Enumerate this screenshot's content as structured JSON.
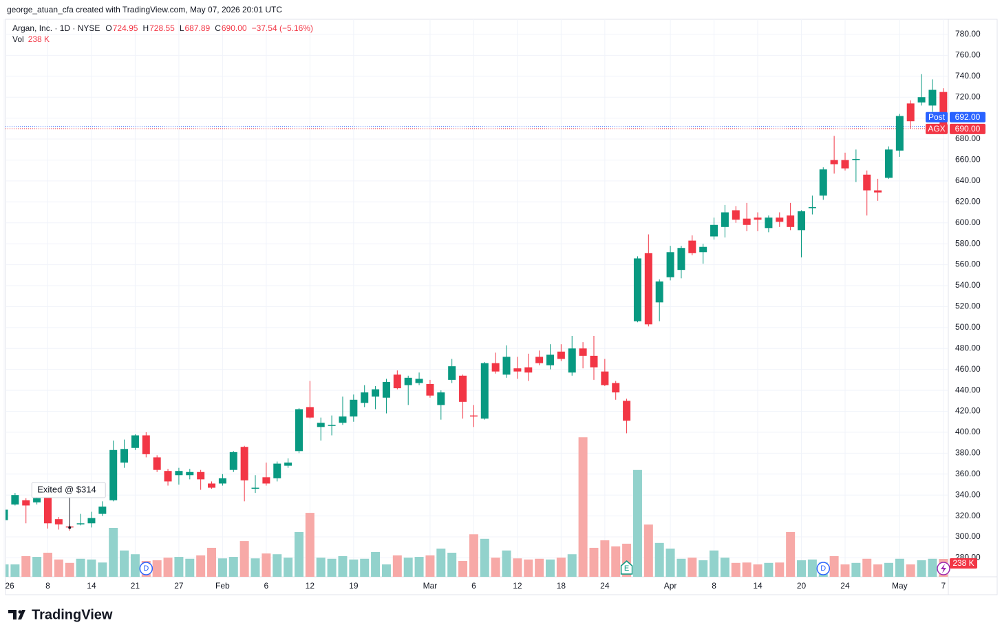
{
  "chart_data": {
    "type": "candlestick",
    "header": "george_atuan_cfa created with TradingView.com, May 07, 2026 20:01 UTC",
    "title": "Argan, Inc. · 1D · NYSE",
    "ohlc_legend": [
      {
        "key": "O",
        "value": "724.95"
      },
      {
        "key": "H",
        "value": "728.55"
      },
      {
        "key": "L",
        "value": "687.89"
      },
      {
        "key": "C",
        "value": "690.00"
      }
    ],
    "change": "−37.54 (−5.16%)",
    "volume_legend": {
      "name": "Vol",
      "value": "238 K"
    },
    "brand": "TradingView",
    "up_color": "#089981",
    "down_color": "#f23645",
    "up_volume_color": "#92d2cc",
    "down_volume_color": "#f7a9a7",
    "categories": [
      "26",
      null,
      null,
      null,
      "8",
      null,
      null,
      null,
      "14",
      null,
      null,
      null,
      "21",
      null,
      null,
      null,
      "27",
      null,
      null,
      null,
      "Feb",
      null,
      null,
      null,
      "6",
      null,
      null,
      null,
      "12",
      null,
      null,
      null,
      "19",
      null,
      null,
      null,
      null,
      null,
      null,
      "Mar",
      null,
      null,
      null,
      "6",
      null,
      null,
      null,
      "12",
      null,
      null,
      null,
      "18",
      null,
      null,
      null,
      "24",
      null,
      null,
      null,
      null,
      null,
      "Apr",
      null,
      null,
      null,
      "8",
      null,
      null,
      null,
      "14",
      null,
      null,
      null,
      "20",
      null,
      null,
      null,
      "24",
      null,
      null,
      null,
      null,
      "May",
      null,
      null,
      null,
      "7"
    ],
    "open": [
      316,
      331,
      335,
      333,
      338,
      317,
      310,
      312,
      313,
      322,
      335,
      371,
      385,
      397,
      376,
      363,
      359,
      359,
      362,
      351,
      351,
      364,
      386,
      346,
      357,
      356,
      368,
      382,
      424,
      405,
      406,
      409,
      415,
      428,
      434,
      433,
      455,
      445,
      447,
      446,
      426,
      450,
      454,
      416,
      413,
      466,
      455,
      461,
      462,
      472,
      464,
      477,
      457,
      480,
      473,
      458,
      447,
      430,
      506,
      571,
      524,
      548,
      555,
      583,
      572,
      587,
      596,
      612,
      604,
      605,
      595,
      605,
      607,
      593,
      614,
      626,
      660,
      660,
      660,
      646,
      631,
      643,
      669,
      714,
      715,
      712,
      724.95
    ],
    "high": [
      328,
      342,
      337,
      340,
      340,
      319,
      312,
      322,
      324,
      334,
      392,
      393,
      398,
      400,
      378,
      365,
      366,
      365,
      364,
      353,
      360,
      382,
      387,
      359,
      371,
      372,
      375,
      423,
      449,
      414,
      416,
      434,
      436,
      445,
      444,
      451,
      459,
      454,
      457,
      450,
      440,
      470,
      455,
      426,
      467,
      476,
      483,
      472,
      475,
      478,
      484,
      484,
      492,
      486,
      492,
      470,
      449,
      432,
      568,
      589,
      546,
      578,
      578,
      588,
      580,
      605,
      617,
      616,
      619,
      610,
      607,
      610,
      619,
      612,
      626,
      653,
      683,
      667,
      670,
      650,
      642,
      673,
      704,
      717,
      742,
      737,
      728.55
    ],
    "low": [
      314,
      330,
      313,
      331,
      308,
      307,
      306,
      311,
      309,
      320,
      334,
      366,
      383,
      376,
      362,
      349,
      350,
      355,
      345,
      346,
      349,
      362,
      334,
      342,
      349,
      353,
      366,
      380,
      413,
      392,
      397,
      407,
      410,
      424,
      422,
      418,
      441,
      426,
      445,
      433,
      412,
      447,
      413,
      405,
      412,
      456,
      452,
      451,
      449,
      464,
      460,
      468,
      454,
      461,
      450,
      444,
      431,
      399,
      505,
      501,
      506,
      545,
      547,
      569,
      561,
      584,
      586,
      600,
      592,
      592,
      591,
      596,
      593,
      567,
      608,
      622,
      647,
      650,
      639,
      607,
      621,
      642,
      663,
      690,
      712,
      706,
      687.89
    ],
    "close": [
      326,
      340,
      330,
      337,
      313,
      312,
      309,
      313,
      318,
      329,
      383,
      384,
      397,
      379,
      364,
      353,
      363,
      362,
      355,
      347,
      356,
      381,
      354,
      347,
      351,
      370,
      371,
      422,
      414,
      409,
      407,
      415,
      431,
      438,
      441,
      448,
      442,
      452,
      451,
      435,
      438,
      463,
      429,
      415,
      466,
      458,
      472,
      458,
      457,
      466,
      474,
      470,
      480,
      473,
      462,
      445,
      438,
      411,
      566,
      503,
      544,
      572,
      576,
      571,
      577,
      598,
      610,
      603,
      598,
      603,
      605,
      601,
      596,
      611,
      615,
      651,
      656,
      652,
      661,
      631,
      629,
      670,
      702,
      697,
      720,
      727,
      690
    ],
    "volume": [
      165,
      165,
      275,
      265,
      320,
      230,
      185,
      240,
      230,
      190,
      650,
      350,
      300,
      210,
      220,
      255,
      265,
      240,
      285,
      385,
      245,
      265,
      475,
      245,
      310,
      300,
      255,
      595,
      850,
      255,
      240,
      275,
      230,
      240,
      330,
      165,
      285,
      255,
      265,
      285,
      375,
      320,
      210,
      565,
      505,
      255,
      350,
      245,
      230,
      240,
      230,
      255,
      300,
      1855,
      385,
      485,
      405,
      440,
      1420,
      695,
      450,
      375,
      240,
      255,
      220,
      350,
      255,
      185,
      190,
      165,
      185,
      190,
      595,
      220,
      230,
      190,
      275,
      165,
      185,
      240,
      165,
      185,
      240,
      165,
      220,
      240,
      238
    ],
    "volume_label": "238 K",
    "ylim": [
      261.9,
      793.1
    ],
    "y2lim": [
      0,
      2000
    ],
    "yticks": [
      {
        "value": 280,
        "label": "280.00"
      },
      {
        "value": 300,
        "label": "300.00"
      },
      {
        "value": 320,
        "label": "320.00"
      },
      {
        "value": 340,
        "label": "340.00"
      },
      {
        "value": 360,
        "label": "360.00"
      },
      {
        "value": 380,
        "label": "380.00"
      },
      {
        "value": 400,
        "label": "400.00"
      },
      {
        "value": 420,
        "label": "420.00"
      },
      {
        "value": 440,
        "label": "440.00"
      },
      {
        "value": 460,
        "label": "460.00"
      },
      {
        "value": 480,
        "label": "480.00"
      },
      {
        "value": 500,
        "label": "500.00"
      },
      {
        "value": 520,
        "label": "520.00"
      },
      {
        "value": 540,
        "label": "540.00"
      },
      {
        "value": 560,
        "label": "560.00"
      },
      {
        "value": 580,
        "label": "580.00"
      },
      {
        "value": 600,
        "label": "600.00"
      },
      {
        "value": 620,
        "label": "620.00"
      },
      {
        "value": 640,
        "label": "640.00"
      },
      {
        "value": 660,
        "label": "660.00"
      },
      {
        "value": 680,
        "label": "680.00"
      },
      {
        "value": 700,
        "label": "700.00"
      },
      {
        "value": 720,
        "label": "720.00"
      },
      {
        "value": 740,
        "label": "740.00"
      },
      {
        "value": 760,
        "label": "760.00"
      },
      {
        "value": 780,
        "label": "780.00"
      }
    ],
    "price_lines": [
      {
        "name": "Post",
        "value": 692,
        "label": "692.00",
        "color": "#2962ff"
      },
      {
        "name": "AGX",
        "value": 690,
        "label": "690.00",
        "color": "#f23645"
      }
    ],
    "events": [
      {
        "label": "D",
        "index": 13,
        "color": "#2962ff"
      },
      {
        "label": "E",
        "index": 57,
        "color": "#089981"
      },
      {
        "label": "D",
        "index": 75,
        "color": "#2962ff"
      }
    ],
    "annotation": {
      "text": "Exited @ $314",
      "index": 6
    },
    "grid": true
  }
}
